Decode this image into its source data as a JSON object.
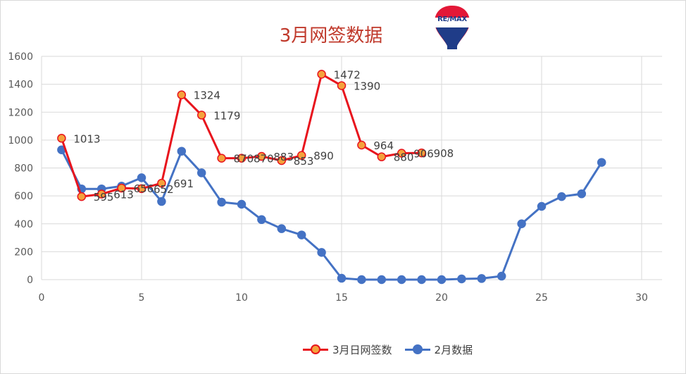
{
  "chart_data": {
    "type": "line",
    "title": "3月网签数据",
    "logo_text": "RE/MAX",
    "xlim": [
      0,
      30
    ],
    "ylim": [
      0,
      1600
    ],
    "x_ticks": [
      0,
      5,
      10,
      15,
      20,
      25,
      30
    ],
    "y_ticks": [
      0,
      200,
      400,
      600,
      800,
      1000,
      1200,
      1400,
      1600
    ],
    "grid": "vertical and horizontal",
    "legend_position": "bottom",
    "series": [
      {
        "name": "3月日网签数",
        "color": "#e8141d",
        "marker_fill": "#f4a23c",
        "x": [
          1,
          2,
          3,
          4,
          5,
          6,
          7,
          8,
          9,
          10,
          11,
          12,
          13,
          14,
          15,
          16,
          17,
          18,
          19
        ],
        "values": [
          1013,
          595,
          613,
          656,
          652,
          691,
          1324,
          1179,
          870,
          870,
          883,
          853,
          890,
          1472,
          1390,
          964,
          880,
          906,
          908
        ],
        "labels": [
          "1013",
          "595",
          "613",
          "656",
          "652",
          "691",
          "1324",
          "1179",
          "870",
          "870",
          "883",
          "853",
          "890",
          "1472",
          "1390",
          "964",
          "880",
          "906",
          "908"
        ]
      },
      {
        "name": "2月数据",
        "color": "#4472c4",
        "marker_fill": "#4472c4",
        "x": [
          1,
          2,
          3,
          4,
          5,
          6,
          7,
          8,
          9,
          10,
          11,
          12,
          13,
          14,
          15,
          16,
          17,
          18,
          19,
          20,
          21,
          22,
          23,
          24,
          25,
          26,
          27,
          28
        ],
        "values": [
          930,
          650,
          650,
          670,
          730,
          560,
          920,
          765,
          555,
          540,
          430,
          365,
          320,
          195,
          10,
          0,
          0,
          0,
          0,
          0,
          5,
          8,
          25,
          400,
          525,
          595,
          615,
          840
        ]
      }
    ]
  }
}
